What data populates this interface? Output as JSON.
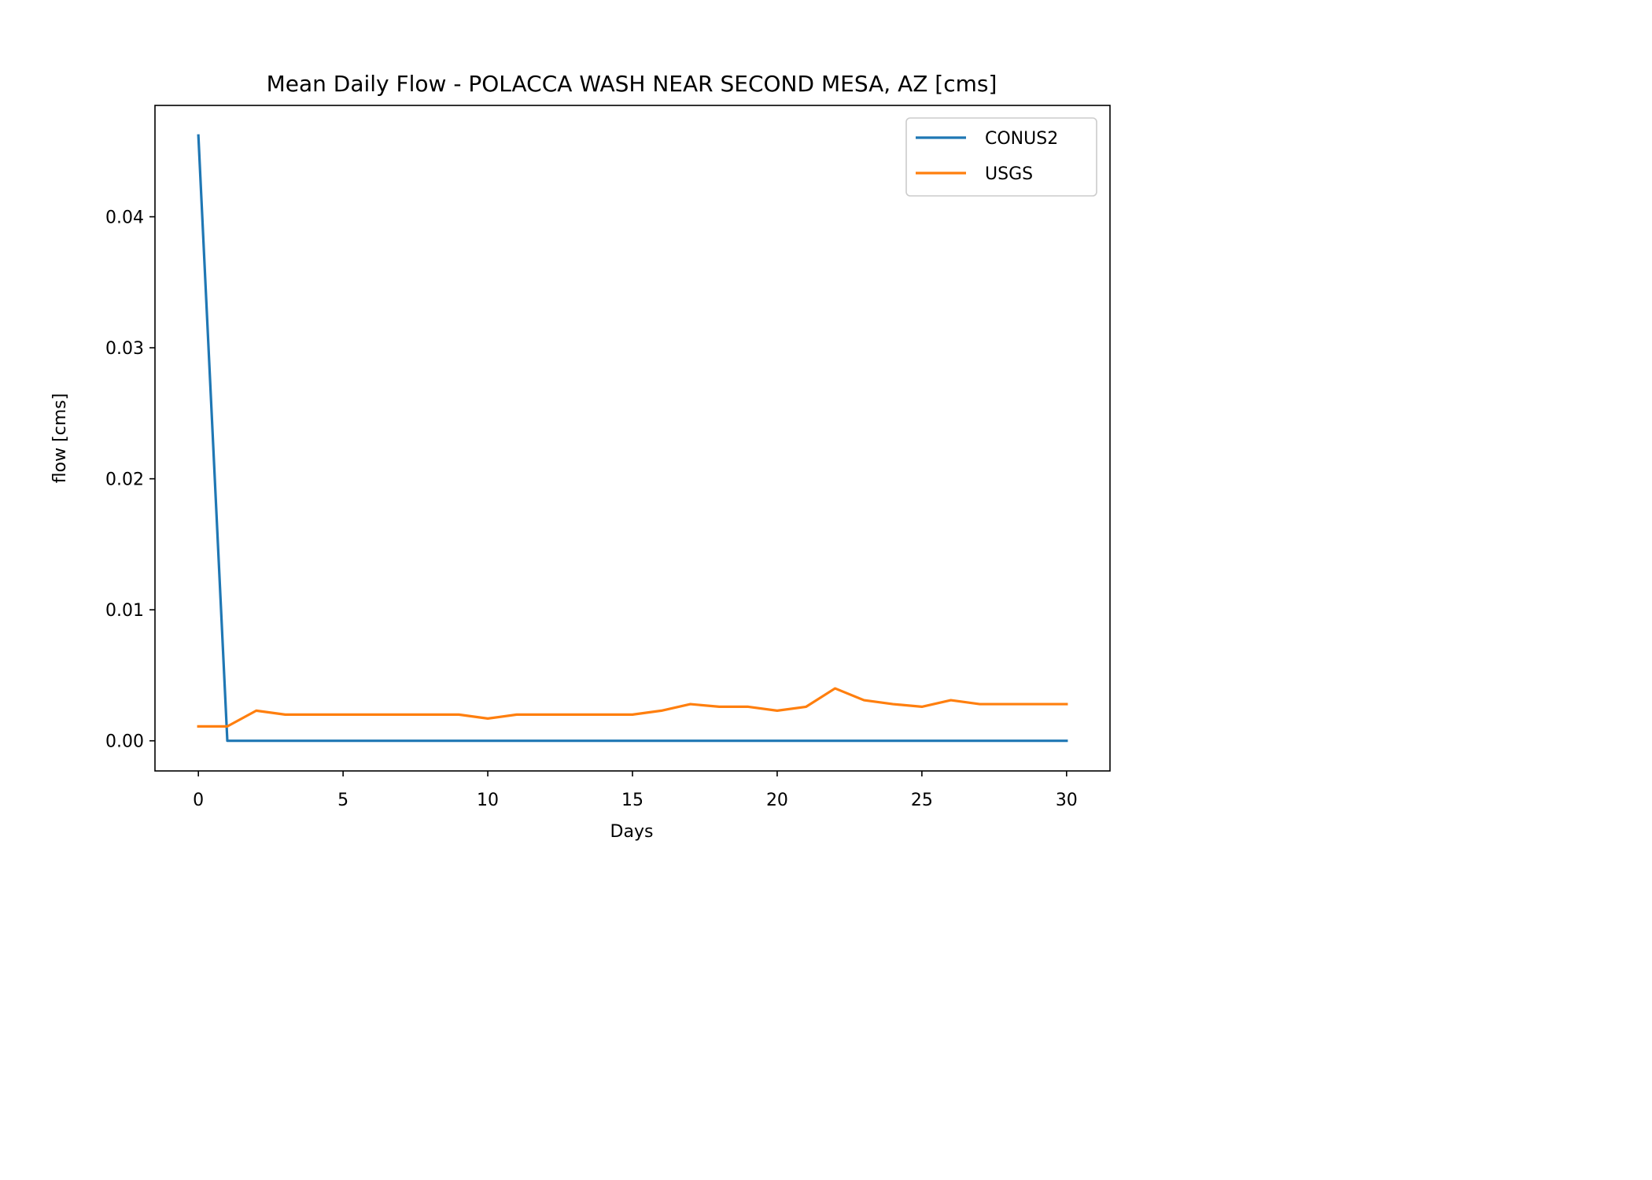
{
  "chart_data": {
    "type": "line",
    "title": "Mean Daily Flow - POLACCA WASH NEAR SECOND MESA, AZ [cms]",
    "xlabel": "Days",
    "ylabel": "flow [cms]",
    "xlim": [
      -1.5,
      31.5
    ],
    "ylim": [
      -0.0023,
      0.0485
    ],
    "xticks": [
      0,
      5,
      10,
      15,
      20,
      25,
      30
    ],
    "xtick_labels": [
      "0",
      "5",
      "10",
      "15",
      "20",
      "25",
      "30"
    ],
    "yticks": [
      0.0,
      0.01,
      0.02,
      0.03,
      0.04
    ],
    "ytick_labels": [
      "0.00",
      "0.01",
      "0.02",
      "0.03",
      "0.04"
    ],
    "grid": false,
    "legend_position": "top-right",
    "x": [
      0,
      1,
      2,
      3,
      4,
      5,
      6,
      7,
      8,
      9,
      10,
      11,
      12,
      13,
      14,
      15,
      16,
      17,
      18,
      19,
      20,
      21,
      22,
      23,
      24,
      25,
      26,
      27,
      28,
      29,
      30
    ],
    "series": [
      {
        "name": "CONUS2",
        "color": "#1f77b4",
        "values": [
          0.0462,
          0,
          0,
          0,
          0,
          0,
          0,
          0,
          0,
          0,
          0,
          0,
          0,
          0,
          0,
          0,
          0,
          0,
          0,
          0,
          0,
          0,
          0,
          0,
          0,
          0,
          0,
          0,
          0,
          0,
          0
        ]
      },
      {
        "name": "USGS",
        "color": "#ff7f0e",
        "values": [
          0.0011,
          0.0011,
          0.0023,
          0.002,
          0.002,
          0.002,
          0.002,
          0.002,
          0.002,
          0.002,
          0.0017,
          0.002,
          0.002,
          0.002,
          0.002,
          0.002,
          0.0023,
          0.0028,
          0.0026,
          0.0026,
          0.0023,
          0.0026,
          0.004,
          0.0031,
          0.0028,
          0.0026,
          0.0031,
          0.0028,
          0.0028,
          0.0028,
          0.0028
        ]
      }
    ]
  }
}
